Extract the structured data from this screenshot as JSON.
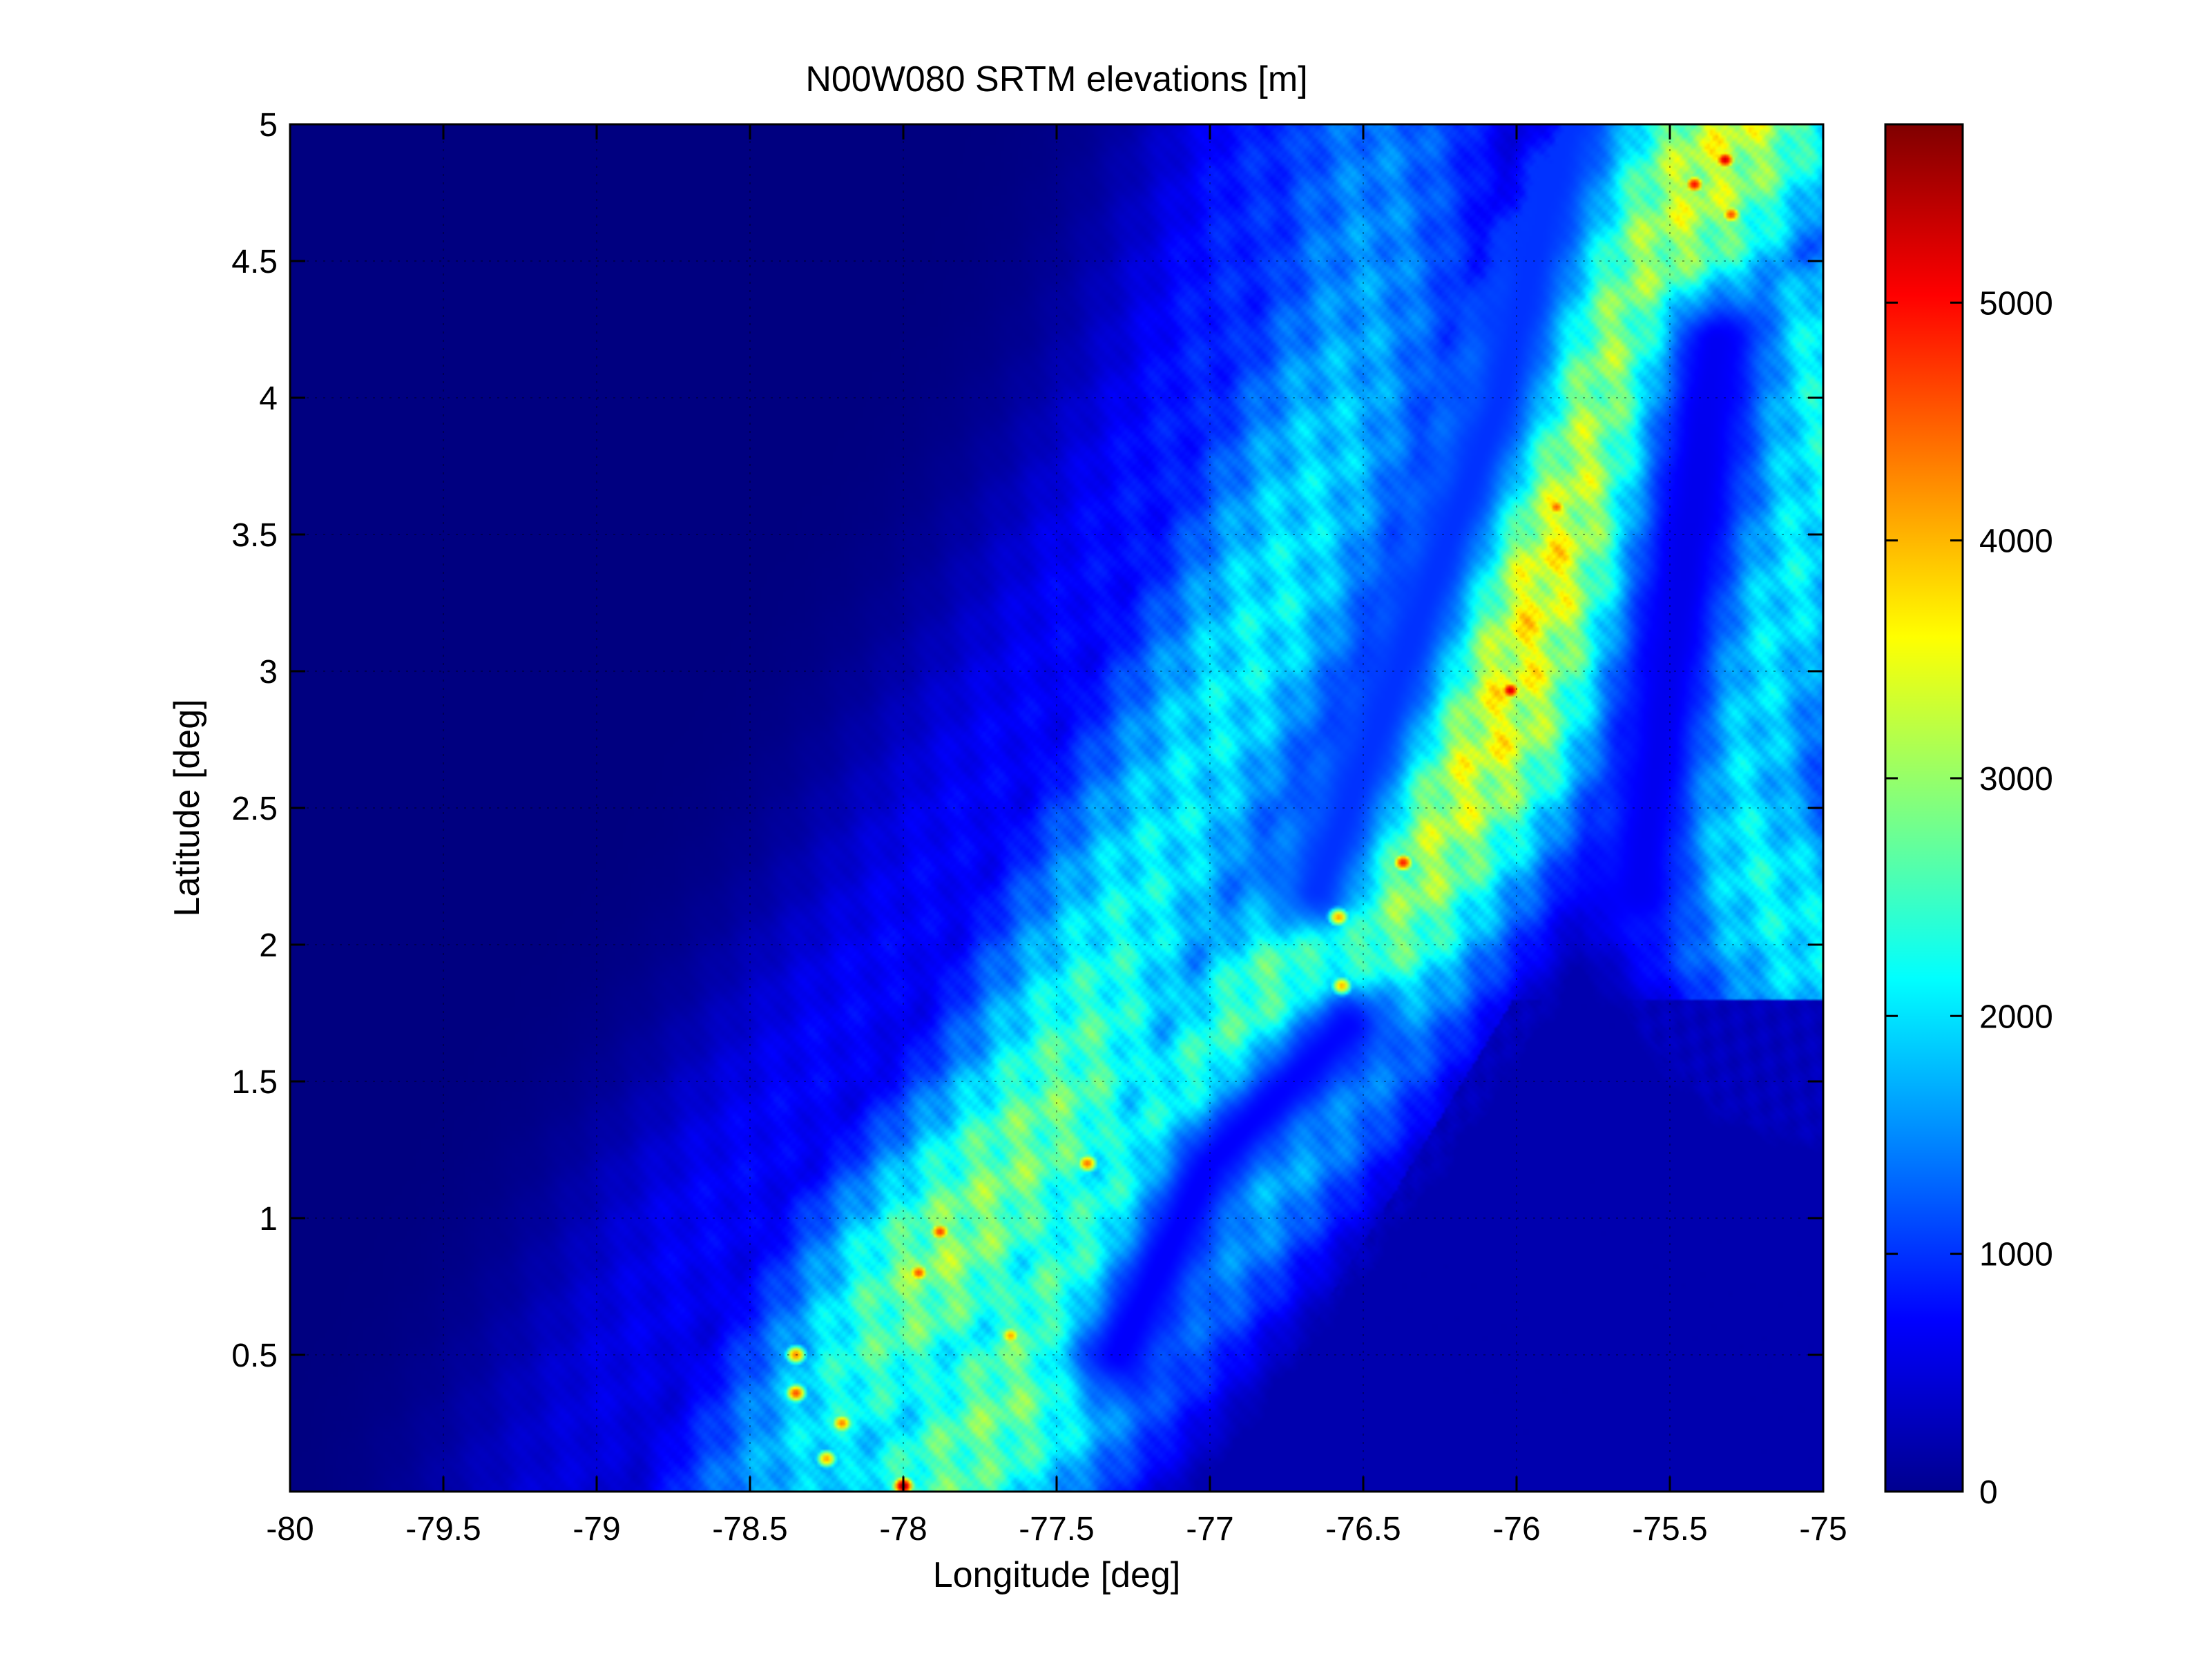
{
  "chart_data": {
    "type": "heatmap",
    "title": "N00W080 SRTM elevations [m]",
    "xlabel": "Longitude [deg]",
    "ylabel": "Latitude [deg]",
    "xlim": [
      -80,
      -75
    ],
    "ylim": [
      0,
      5
    ],
    "x_ticks": [
      -80,
      -79.5,
      -79,
      -78.5,
      -78,
      -77.5,
      -77,
      -76.5,
      -76,
      -75.5,
      -75
    ],
    "x_tick_labels": [
      "-80",
      "-79.5",
      "-79",
      "-78.5",
      "-78",
      "-77.5",
      "-77",
      "-76.5",
      "-76",
      "-75.5",
      "-75"
    ],
    "y_ticks": [
      0.5,
      1,
      1.5,
      2,
      2.5,
      3,
      3.5,
      4,
      4.5,
      5
    ],
    "y_tick_labels": [
      "0.5",
      "1",
      "1.5",
      "2",
      "2.5",
      "3",
      "3.5",
      "4",
      "4.5",
      "5"
    ],
    "grid": true,
    "colormap": "jet",
    "colorbar": {
      "clim": [
        0,
        5750
      ],
      "ticks": [
        0,
        1000,
        2000,
        3000,
        4000,
        5000
      ],
      "tick_labels": [
        "0",
        "1000",
        "2000",
        "3000",
        "4000",
        "5000"
      ]
    },
    "ranges": [
      {
        "points": [
          [
            -79.1,
            0.0,
            500
          ],
          [
            -78.6,
            1.0,
            700
          ],
          [
            -78.0,
            2.0,
            700
          ],
          [
            -77.5,
            3.0,
            700
          ],
          [
            -77.0,
            4.0,
            900
          ],
          [
            -76.7,
            5.0,
            1000
          ]
        ]
      },
      {
        "points": [
          [
            -78.35,
            0.0,
            1800
          ],
          [
            -77.9,
            0.8,
            2900
          ],
          [
            -77.5,
            1.4,
            2700
          ],
          [
            -77.3,
            2.0,
            2200
          ],
          [
            -77.05,
            2.6,
            2000
          ],
          [
            -76.8,
            3.2,
            2100
          ],
          [
            -76.62,
            3.8,
            1900
          ],
          [
            -76.5,
            4.3,
            1600
          ],
          [
            -76.45,
            5.0,
            1400
          ]
        ]
      },
      {
        "points": [
          [
            -77.9,
            0.0,
            2600
          ],
          [
            -77.6,
            0.4,
            2800
          ],
          [
            -77.2,
            1.0,
            3000
          ],
          [
            -76.8,
            1.6,
            3100
          ],
          [
            -76.45,
            2.2,
            3300
          ],
          [
            -76.1,
            2.8,
            3500
          ],
          [
            -75.95,
            3.4,
            3700
          ],
          [
            -75.8,
            4.0,
            3300
          ],
          [
            -75.55,
            4.5,
            3100
          ],
          [
            -75.3,
            5.0,
            3300
          ]
        ]
      },
      {
        "points": [
          [
            -75.0,
            1.9,
            2000
          ],
          [
            -75.4,
            2.5,
            2300
          ],
          [
            -75.3,
            3.0,
            2200
          ],
          [
            -75.05,
            3.6,
            2100
          ],
          [
            -75.0,
            4.2,
            2300
          ]
        ]
      }
    ],
    "valleys": [
      {
        "points": [
          [
            -76.65,
            2.2,
            1000
          ],
          [
            -76.45,
            2.8,
            1000
          ],
          [
            -76.25,
            3.4,
            1000
          ],
          [
            -76.05,
            4.0,
            1000
          ],
          [
            -75.85,
            5.0,
            1000
          ]
        ]
      },
      {
        "points": [
          [
            -77.3,
            0.5,
            700
          ],
          [
            -77.0,
            1.2,
            700
          ],
          [
            -76.55,
            1.7,
            750
          ]
        ]
      },
      {
        "points": [
          [
            -75.6,
            2.2,
            650
          ],
          [
            -75.45,
            3.4,
            600
          ],
          [
            -75.35,
            4.2,
            650
          ]
        ]
      }
    ],
    "peaks": [
      {
        "lon": -78.0,
        "lat": 0.02,
        "elev": 5700
      },
      {
        "lon": -76.02,
        "lat": 2.93,
        "elev": 5300
      },
      {
        "lon": -76.37,
        "lat": 2.3,
        "elev": 4900
      },
      {
        "lon": -75.32,
        "lat": 4.87,
        "elev": 5300
      },
      {
        "lon": -75.42,
        "lat": 4.78,
        "elev": 5000
      },
      {
        "lon": -75.3,
        "lat": 4.67,
        "elev": 4600
      },
      {
        "lon": -77.88,
        "lat": 0.95,
        "elev": 4700
      },
      {
        "lon": -77.95,
        "lat": 0.8,
        "elev": 4600
      },
      {
        "lon": -78.35,
        "lat": 0.36,
        "elev": 4600
      },
      {
        "lon": -78.35,
        "lat": 0.5,
        "elev": 4300
      },
      {
        "lon": -78.2,
        "lat": 0.25,
        "elev": 4300
      },
      {
        "lon": -78.25,
        "lat": 0.12,
        "elev": 4100
      },
      {
        "lon": -77.4,
        "lat": 1.2,
        "elev": 4400
      },
      {
        "lon": -77.65,
        "lat": 0.57,
        "elev": 4100
      },
      {
        "lon": -76.58,
        "lat": 2.1,
        "elev": 4100
      },
      {
        "lon": -76.57,
        "lat": 1.85,
        "elev": 4000
      },
      {
        "lon": -75.87,
        "lat": 3.6,
        "elev": 4500
      }
    ]
  }
}
